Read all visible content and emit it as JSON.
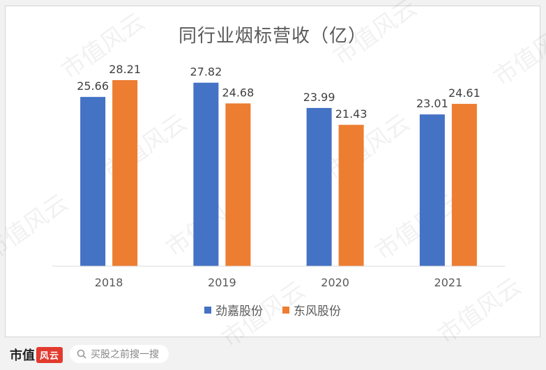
{
  "chart_data": {
    "type": "bar",
    "title": "同行业烟标营收（亿）",
    "categories": [
      "2018",
      "2019",
      "2020",
      "2021"
    ],
    "series": [
      {
        "name": "劲嘉股份",
        "color": "#4472c4",
        "values": [
          25.66,
          27.82,
          23.99,
          23.01
        ]
      },
      {
        "name": "东风股份",
        "color": "#ed7d31",
        "values": [
          28.21,
          24.68,
          21.43,
          24.61
        ]
      }
    ],
    "value_labels": {
      "s0": [
        "25.66",
        "27.82",
        "23.99",
        "23.01"
      ],
      "s1": [
        "28.21",
        "24.68",
        "21.43",
        "24.61"
      ]
    },
    "ylim": [
      0,
      30
    ],
    "grid": false,
    "legend": "bottom"
  },
  "watermark": "市值风云",
  "footer": {
    "brand": "市值",
    "brand_seal": "风云",
    "search_placeholder": "买股之前搜一搜"
  }
}
